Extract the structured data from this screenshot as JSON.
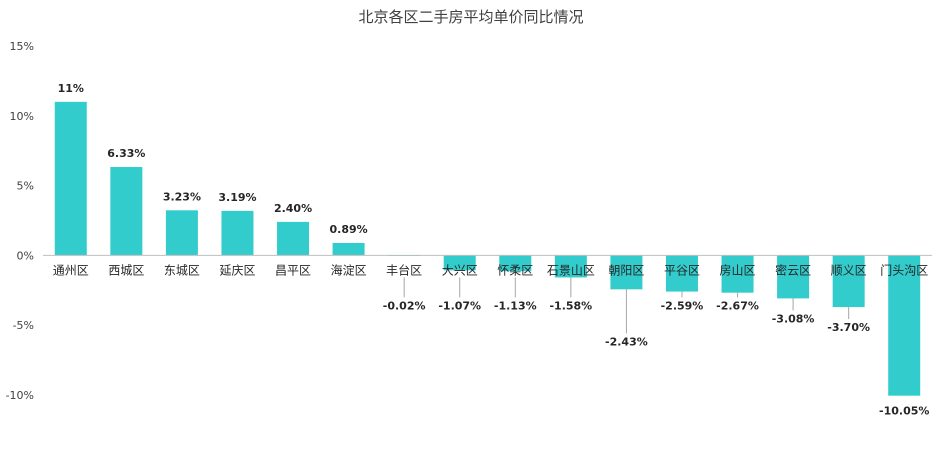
{
  "chart_data": {
    "type": "bar",
    "title": "北京各区二手房平均单价同比情况",
    "xlabel": "",
    "ylabel": "",
    "ylim": [
      -10,
      15
    ],
    "y_ticks": [
      "15%",
      "10%",
      "5%",
      "0%",
      "-5%",
      "-10%"
    ],
    "grid": false,
    "legend": "none",
    "categories": [
      "通州区",
      "西城区",
      "东城区",
      "延庆区",
      "昌平区",
      "海淀区",
      "丰台区",
      "大兴区",
      "怀柔区",
      "石景山区",
      "朝阳区",
      "平谷区",
      "房山区",
      "密云区",
      "顺义区",
      "门头沟区"
    ],
    "values": [
      11,
      6.33,
      3.23,
      3.19,
      2.4,
      0.89,
      -0.02,
      -1.07,
      -1.13,
      -1.58,
      -2.43,
      -2.59,
      -2.67,
      -3.08,
      -3.7,
      -10.05
    ],
    "data_labels": [
      "11%",
      "6.33%",
      "3.23%",
      "3.19%",
      "2.40%",
      "0.89%",
      "-0.02%",
      "-1.07%",
      "-1.13%",
      "-1.58%",
      "-2.43%",
      "-2.59%",
      "-2.67%",
      "-3.08%",
      "-3.70%",
      "-10.05%"
    ],
    "bar_color": "#33CCCC"
  }
}
